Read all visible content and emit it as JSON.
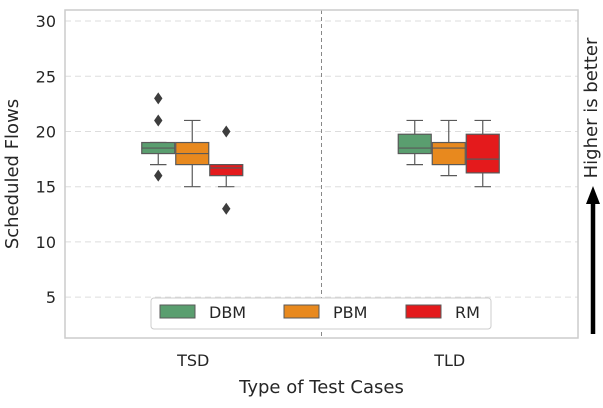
{
  "chart_data": {
    "type": "box",
    "xlabel": "Type of Test Cases",
    "ylabel": "Scheduled Flows",
    "ylim": [
      1.3,
      31
    ],
    "yticks": [
      5,
      10,
      15,
      20,
      25,
      30
    ],
    "categories": [
      "TSD",
      "TLD"
    ],
    "legend_position": "lower-center",
    "annotation": {
      "text": "Higher is better",
      "arrow": "up"
    },
    "grid": true,
    "series": [
      {
        "name": "DBM",
        "color": "#5a9e6f",
        "boxes": [
          {
            "category": "TSD",
            "whisker_low": 17,
            "q1": 18,
            "median": 18.5,
            "q3": 19,
            "whisker_high": 19,
            "outliers": [
              16,
              21,
              23
            ]
          },
          {
            "category": "TLD",
            "whisker_low": 17,
            "q1": 18,
            "median": 18.5,
            "q3": 19.75,
            "whisker_high": 21,
            "outliers": []
          }
        ]
      },
      {
        "name": "PBM",
        "color": "#e8891e",
        "boxes": [
          {
            "category": "TSD",
            "whisker_low": 15,
            "q1": 17,
            "median": 18,
            "q3": 19,
            "whisker_high": 21,
            "outliers": []
          },
          {
            "category": "TLD",
            "whisker_low": 16,
            "q1": 17,
            "median": 18.5,
            "q3": 19,
            "whisker_high": 21,
            "outliers": []
          }
        ]
      },
      {
        "name": "RM",
        "color": "#e41a1c",
        "boxes": [
          {
            "category": "TSD",
            "whisker_low": 15,
            "q1": 16,
            "median": 16.7,
            "q3": 17,
            "whisker_high": 17,
            "outliers": [
              13,
              20
            ]
          },
          {
            "category": "TLD",
            "whisker_low": 15,
            "q1": 16.25,
            "median": 17.5,
            "q3": 19.75,
            "whisker_high": 21,
            "outliers": []
          }
        ]
      }
    ]
  }
}
